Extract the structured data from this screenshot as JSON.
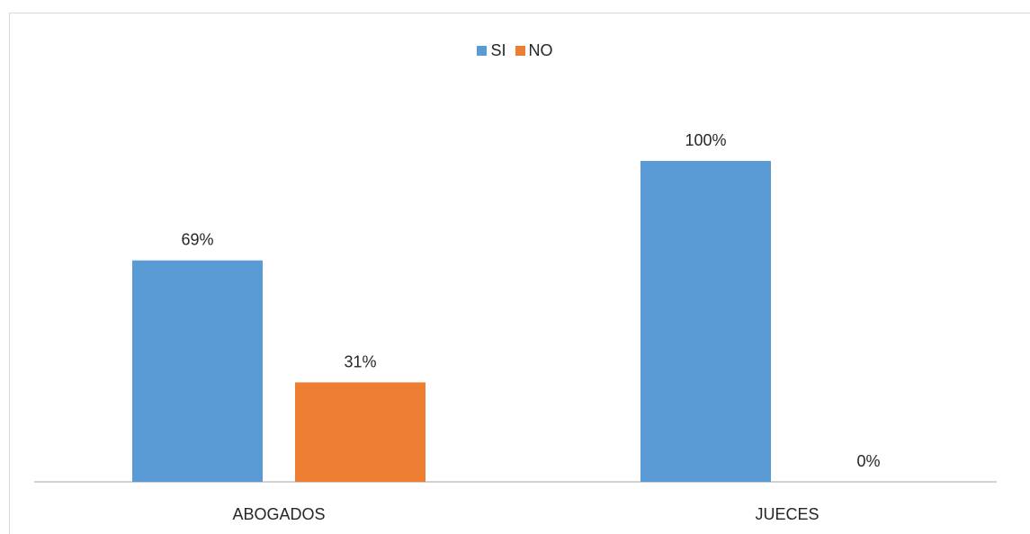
{
  "chart_data": {
    "type": "bar",
    "categories": [
      "ABOGADOS",
      "JUECES"
    ],
    "series": [
      {
        "name": "SI",
        "values": [
          69,
          100
        ],
        "labels": [
          "69%",
          "100%"
        ],
        "color": "#5b9bd5"
      },
      {
        "name": "NO",
        "values": [
          31,
          0
        ],
        "labels": [
          "31%",
          "0%"
        ],
        "color": "#ed7d31"
      }
    ],
    "ylim": [
      0,
      100
    ],
    "grid": false,
    "legend_position": "top-center"
  }
}
